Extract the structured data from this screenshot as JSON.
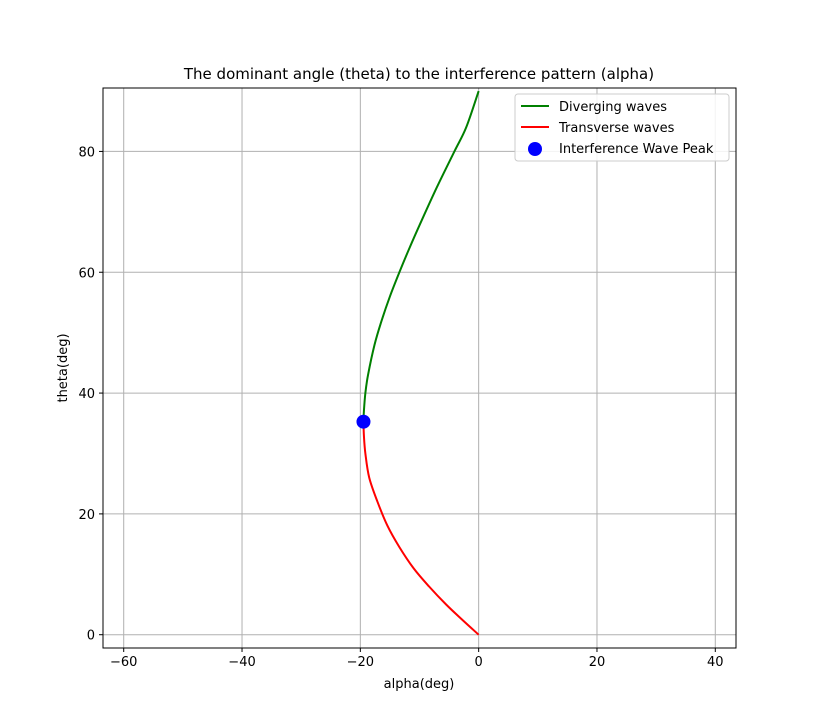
{
  "chart_data": {
    "type": "line",
    "title": "The dominant angle (theta) to the interference pattern (alpha)",
    "xlabel": "alpha(deg)",
    "ylabel": "theta(deg)",
    "xlim": [
      -63.5,
      43.5
    ],
    "ylim": [
      -2.2,
      90.5
    ],
    "xticks": [
      -60,
      -40,
      -20,
      0,
      20,
      40
    ],
    "xtick_labels": [
      "−60",
      "−40",
      "−20",
      "0",
      "20",
      "40"
    ],
    "yticks": [
      0,
      20,
      40,
      60,
      80
    ],
    "ytick_labels": [
      "0",
      "20",
      "40",
      "60",
      "80"
    ],
    "grid": true,
    "legend_position": "top-right",
    "series": [
      {
        "name": "Diverging waves",
        "kind": "line",
        "color": "#008000",
        "x": [
          -19.47,
          -19.4,
          -19.15,
          -18.7,
          -17.6,
          -16.4,
          -15.0,
          -13.4,
          -11.7,
          -9.9,
          -7.1,
          -4.1,
          -2.1,
          0.0
        ],
        "y": [
          35.26,
          37.0,
          40.0,
          43.0,
          48.0,
          52.0,
          56.0,
          60.0,
          64.0,
          68.0,
          74.0,
          80.0,
          84.0,
          90.0
        ]
      },
      {
        "name": "Transverse waves",
        "kind": "line",
        "color": "#ff0000",
        "x": [
          -19.47,
          -19.4,
          -19.15,
          -18.5,
          -17.1,
          -15.4,
          -13.4,
          -11.0,
          -8.4,
          -5.5,
          -2.8,
          0.0
        ],
        "y": [
          35.26,
          33.0,
          30.0,
          26.0,
          22.0,
          18.0,
          14.5,
          11.0,
          8.0,
          5.0,
          2.5,
          0.0
        ]
      },
      {
        "name": "Interference Wave Peak",
        "kind": "scatter",
        "color": "#0000ff",
        "x": [
          -19.47
        ],
        "y": [
          35.26
        ]
      }
    ]
  }
}
